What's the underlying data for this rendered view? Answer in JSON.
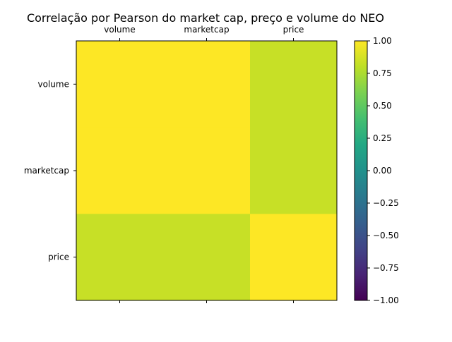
{
  "chart_data": {
    "type": "heatmap",
    "title": "Correlação por Pearson do market cap, preço e volume do NEO",
    "x_categories": [
      "volume",
      "marketcap",
      "price"
    ],
    "y_categories": [
      "volume",
      "marketcap",
      "price"
    ],
    "values": [
      [
        1.0,
        1.0,
        0.83
      ],
      [
        1.0,
        1.0,
        0.83
      ],
      [
        0.83,
        0.83,
        1.0
      ]
    ],
    "colormap": "viridis",
    "vmin": -1.0,
    "vmax": 1.0,
    "colorbar_ticks": [
      "1.00",
      "0.75",
      "0.50",
      "0.25",
      "0.00",
      "−0.25",
      "−0.50",
      "−0.75",
      "−1.00"
    ],
    "x_tick_position": "top"
  }
}
